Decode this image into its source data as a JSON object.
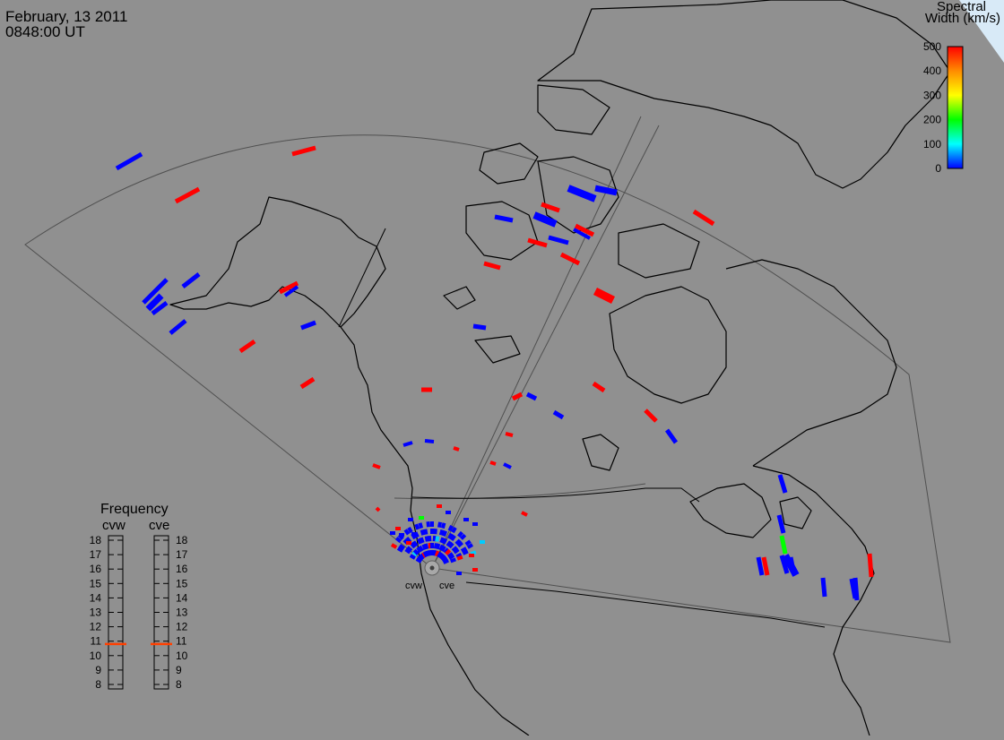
{
  "header": {
    "date": "February, 13 2011",
    "time": "0848:00 UT"
  },
  "colorbar": {
    "title_line1": "Spectral",
    "title_line2": "Width (km/s)",
    "ticks": [
      "500",
      "400",
      "300",
      "200",
      "100",
      "0"
    ],
    "colors": [
      "#ff0000",
      "#ff8c00",
      "#ffff00",
      "#00ff00",
      "#00ffff",
      "#0000ff"
    ]
  },
  "frequency": {
    "title": "Frequency",
    "radars": [
      {
        "name": "cvw",
        "value_mhz": 10.8
      },
      {
        "name": "cve",
        "value_mhz": 10.8
      }
    ],
    "ticks": [
      "18",
      "17",
      "16",
      "15",
      "14",
      "13",
      "12",
      "11",
      "10",
      "9",
      "8"
    ],
    "marker_color": "#ff4000"
  },
  "radar_labels": [
    "cvw",
    "cve"
  ],
  "palette": {
    "background": "#909090",
    "coastline": "#000000",
    "fov_outline": "#404040",
    "echo_blue": "#0000ff",
    "echo_red": "#ff0000",
    "echo_green": "#00ff00",
    "echo_cyan": "#00ccff"
  }
}
